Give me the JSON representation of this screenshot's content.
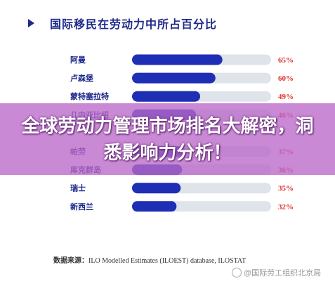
{
  "chart_data": {
    "type": "bar",
    "title": "国际移民在劳动力中所占百分比",
    "categories": [
      "阿曼",
      "卢森堡",
      "蒙特塞拉特",
      "几内亚比绍",
      "",
      "帕劳",
      "库克群岛",
      "瑞士",
      "新西兰"
    ],
    "values": [
      65,
      60,
      49,
      46,
      null,
      37,
      36,
      35,
      32
    ],
    "value_labels": [
      "65%",
      "60%",
      "49%",
      "46%",
      "",
      "37%",
      "36%",
      "35%",
      "32%"
    ],
    "xlim": [
      0,
      100
    ],
    "orientation": "horizontal",
    "colors": {
      "bar": "#1e2fb5",
      "track": "#dfe3ea",
      "label": "#1e2a8a",
      "value": "#e0342a"
    }
  },
  "overlay": {
    "text": "全球劳动力管理市场排名大解密，洞悉影响力分析！"
  },
  "source": {
    "prefix": "数据来源：",
    "text": "ILO Modelled Estimates (ILOEST) database, ILOSTAT"
  },
  "watermark": {
    "text": "@国际劳工组织北京局"
  }
}
